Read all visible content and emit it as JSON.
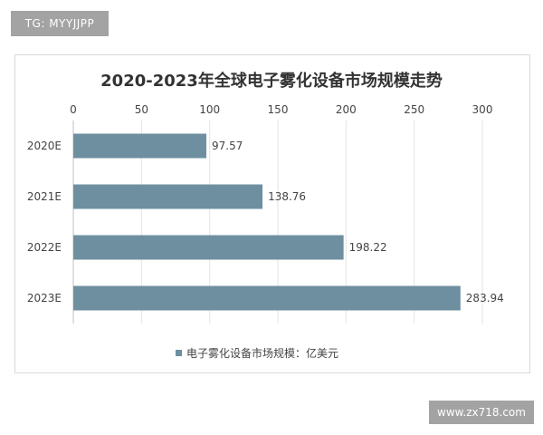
{
  "watermarks": {
    "top_left": "TG: MYYJJPP",
    "bottom_right": "www.zx718.com"
  },
  "chart_data": {
    "type": "bar",
    "orientation": "horizontal",
    "title": "2020-2023年全球电子雾化设备市场规模走势",
    "categories": [
      "2020E",
      "2021E",
      "2022E",
      "2023E"
    ],
    "series": [
      {
        "name": "电子雾化设备市场规模：亿美元",
        "values": [
          97.57,
          138.76,
          198.22,
          283.94
        ],
        "color": "#6e8fa0"
      }
    ],
    "xlim": [
      0,
      300
    ],
    "x_ticks": [
      0,
      50,
      100,
      150,
      200,
      250,
      300
    ],
    "x_axis_position": "top",
    "grid": true,
    "legend_position": "bottom-center",
    "data_labels": [
      "97.57",
      "138.76",
      "198.22",
      "283.94"
    ]
  }
}
